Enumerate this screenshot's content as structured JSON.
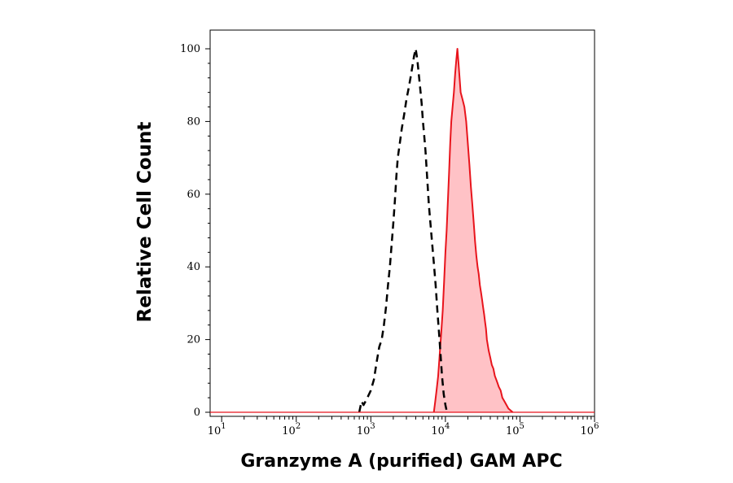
{
  "chart_data": {
    "type": "area",
    "title": "",
    "xlabel": "Granzyme A (purified) GAM APC",
    "ylabel": "Relative Cell Count",
    "x_scale": "log",
    "xlim": [
      7,
      1000000
    ],
    "ylim": [
      0,
      100
    ],
    "x_ticks": [
      {
        "base": "10",
        "exp": "1",
        "value": 10
      },
      {
        "base": "10",
        "exp": "2",
        "value": 100
      },
      {
        "base": "10",
        "exp": "3",
        "value": 1000
      },
      {
        "base": "10",
        "exp": "4",
        "value": 10000
      },
      {
        "base": "10",
        "exp": "5",
        "value": 100000
      },
      {
        "base": "10",
        "exp": "6",
        "value": 1000000
      }
    ],
    "y_ticks": [
      0,
      20,
      40,
      60,
      80,
      100
    ],
    "grid": false,
    "series": [
      {
        "style": "dashed",
        "color": "#000000",
        "fill": "none",
        "points": [
          [
            700,
            0
          ],
          [
            750,
            3
          ],
          [
            800,
            2
          ],
          [
            900,
            4
          ],
          [
            1000,
            6
          ],
          [
            1100,
            9
          ],
          [
            1200,
            14
          ],
          [
            1300,
            18
          ],
          [
            1400,
            20
          ],
          [
            1500,
            24
          ],
          [
            1600,
            29
          ],
          [
            1700,
            35
          ],
          [
            1800,
            40
          ],
          [
            1900,
            46
          ],
          [
            2000,
            52
          ],
          [
            2100,
            58
          ],
          [
            2200,
            65
          ],
          [
            2300,
            70
          ],
          [
            2450,
            74
          ],
          [
            2600,
            78
          ],
          [
            2800,
            82
          ],
          [
            3000,
            86
          ],
          [
            3200,
            89
          ],
          [
            3400,
            92
          ],
          [
            3600,
            95
          ],
          [
            3800,
            98
          ],
          [
            4000,
            100
          ],
          [
            4200,
            97
          ],
          [
            4400,
            93
          ],
          [
            4600,
            89
          ],
          [
            4800,
            85
          ],
          [
            5000,
            80
          ],
          [
            5200,
            76
          ],
          [
            5400,
            72
          ],
          [
            5600,
            67
          ],
          [
            5800,
            62
          ],
          [
            6000,
            57
          ],
          [
            6300,
            52
          ],
          [
            6600,
            47
          ],
          [
            7000,
            41
          ],
          [
            7400,
            35
          ],
          [
            7800,
            28
          ],
          [
            8200,
            22
          ],
          [
            8600,
            16
          ],
          [
            9000,
            10
          ],
          [
            9500,
            5
          ],
          [
            10000,
            2
          ],
          [
            10500,
            0
          ]
        ]
      },
      {
        "style": "solid",
        "color": "#e8141c",
        "fill": "#ffc2c6",
        "points": [
          [
            7000,
            0
          ],
          [
            7300,
            3
          ],
          [
            7600,
            6
          ],
          [
            8000,
            10
          ],
          [
            8400,
            16
          ],
          [
            8800,
            22
          ],
          [
            9200,
            28
          ],
          [
            9600,
            36
          ],
          [
            10000,
            44
          ],
          [
            10400,
            50
          ],
          [
            10800,
            58
          ],
          [
            11200,
            66
          ],
          [
            11600,
            74
          ],
          [
            12000,
            80
          ],
          [
            12500,
            84
          ],
          [
            13000,
            88
          ],
          [
            13500,
            93
          ],
          [
            14000,
            97
          ],
          [
            14500,
            100
          ],
          [
            15000,
            96
          ],
          [
            15500,
            92
          ],
          [
            16000,
            88
          ],
          [
            17000,
            86
          ],
          [
            18000,
            84
          ],
          [
            19000,
            80
          ],
          [
            20000,
            74
          ],
          [
            21000,
            68
          ],
          [
            22000,
            62
          ],
          [
            23000,
            57
          ],
          [
            24000,
            52
          ],
          [
            25000,
            47
          ],
          [
            26000,
            43
          ],
          [
            27000,
            40
          ],
          [
            28000,
            38
          ],
          [
            29000,
            35
          ],
          [
            30000,
            33
          ],
          [
            31000,
            31
          ],
          [
            32000,
            29
          ],
          [
            33000,
            27
          ],
          [
            34000,
            25
          ],
          [
            35000,
            23
          ],
          [
            36000,
            20
          ],
          [
            38000,
            17
          ],
          [
            40000,
            15
          ],
          [
            42000,
            13
          ],
          [
            44000,
            12
          ],
          [
            46000,
            10
          ],
          [
            48000,
            9
          ],
          [
            50000,
            8
          ],
          [
            52000,
            7
          ],
          [
            55000,
            6
          ],
          [
            58000,
            4
          ],
          [
            62000,
            3
          ],
          [
            66000,
            2
          ],
          [
            70000,
            1
          ],
          [
            80000,
            0
          ]
        ]
      }
    ]
  }
}
